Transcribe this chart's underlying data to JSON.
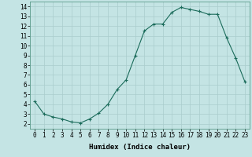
{
  "x": [
    0,
    1,
    2,
    3,
    4,
    5,
    6,
    7,
    8,
    9,
    10,
    11,
    12,
    13,
    14,
    15,
    16,
    17,
    18,
    19,
    20,
    21,
    22,
    23
  ],
  "y": [
    4.3,
    3.0,
    2.7,
    2.5,
    2.2,
    2.1,
    2.5,
    3.1,
    4.0,
    5.5,
    6.5,
    9.0,
    11.5,
    12.2,
    12.2,
    13.4,
    13.9,
    13.7,
    13.5,
    13.2,
    13.2,
    10.8,
    8.7,
    6.3
  ],
  "line_color": "#1a6b5a",
  "marker": "+",
  "marker_size": 3,
  "marker_linewidth": 0.8,
  "background_color": "#c4e4e4",
  "grid_color": "#aacccc",
  "xlabel": "Humidex (Indice chaleur)",
  "xlim": [
    -0.5,
    23.5
  ],
  "ylim": [
    1.5,
    14.5
  ],
  "yticks": [
    2,
    3,
    4,
    5,
    6,
    7,
    8,
    9,
    10,
    11,
    12,
    13,
    14
  ],
  "xticks": [
    0,
    1,
    2,
    3,
    4,
    5,
    6,
    7,
    8,
    9,
    10,
    11,
    12,
    13,
    14,
    15,
    16,
    17,
    18,
    19,
    20,
    21,
    22,
    23
  ],
  "label_fontsize": 6.5,
  "tick_fontsize": 5.5,
  "line_width": 0.8
}
